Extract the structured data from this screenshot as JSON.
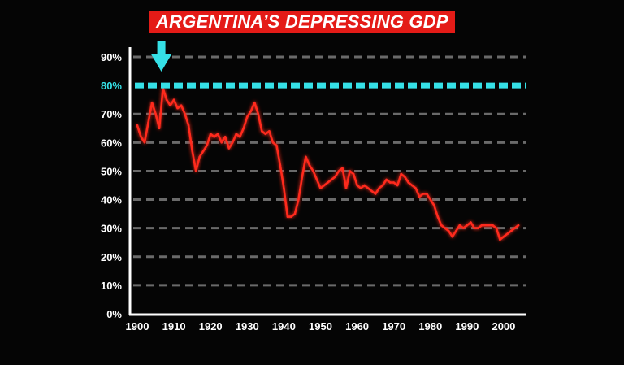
{
  "chart_data": {
    "type": "line",
    "title": "ARGENTINA’S DEPRESSING GDP",
    "xlabel": "",
    "ylabel": "",
    "xlim": [
      1898,
      2006
    ],
    "ylim": [
      0,
      90
    ],
    "x_ticks": [
      "1900",
      "1910",
      "1920",
      "1930",
      "1940",
      "1950",
      "1960",
      "1970",
      "1980",
      "1990",
      "2000"
    ],
    "y_ticks": [
      "0%",
      "10%",
      "20%",
      "30%",
      "40%",
      "50%",
      "60%",
      "70%",
      "80%",
      "90%"
    ],
    "highlight_value": 80,
    "highlight_label": "80%",
    "arrow_year": 1907,
    "grid": true,
    "legend": "none",
    "colors": {
      "line": "#ff2a1f",
      "highlight": "#35e0e6",
      "title_bg": "#e41b17",
      "axis": "#ffffff",
      "grid": "#6a6a6a"
    },
    "series": [
      {
        "x": [
          1900,
          1901,
          1902,
          1903,
          1904,
          1905,
          1906,
          1907,
          1908,
          1909,
          1910,
          1911,
          1912,
          1913,
          1914,
          1915,
          1916,
          1917,
          1918,
          1919,
          1920,
          1921,
          1922,
          1923,
          1924,
          1925,
          1926,
          1927,
          1928,
          1929,
          1930,
          1931,
          1932,
          1933,
          1934,
          1935,
          1936,
          1937,
          1938,
          1939,
          1940,
          1941,
          1942,
          1943,
          1944,
          1945,
          1946,
          1947,
          1948,
          1949,
          1950,
          1951,
          1952,
          1953,
          1954,
          1955,
          1956,
          1957,
          1958,
          1959,
          1960,
          1961,
          1962,
          1963,
          1964,
          1965,
          1966,
          1967,
          1968,
          1969,
          1970,
          1971,
          1972,
          1973,
          1974,
          1975,
          1976,
          1977,
          1978,
          1979,
          1980,
          1981,
          1982,
          1983,
          1984,
          1985,
          1986,
          1987,
          1988,
          1989,
          1990,
          1991,
          1992,
          1993,
          1994,
          1995,
          1996,
          1997,
          1998,
          1999,
          2000,
          2001,
          2002,
          2003,
          2004
        ],
        "y": [
          66,
          62,
          60,
          67,
          74,
          70,
          65,
          79,
          75,
          73,
          75,
          72,
          73,
          70,
          66,
          57,
          50,
          55,
          57,
          59,
          63,
          62,
          63,
          60,
          62,
          58,
          60,
          63,
          62,
          65,
          69,
          71,
          74,
          70,
          64,
          63,
          64,
          60,
          59,
          52,
          44,
          34,
          34,
          35,
          40,
          48,
          55,
          52,
          50,
          47,
          44,
          45,
          46,
          47,
          48,
          50,
          51,
          44,
          50,
          49,
          45,
          44,
          45,
          44,
          43,
          42,
          44,
          45,
          47,
          46,
          46,
          45,
          49,
          48,
          46,
          45,
          44,
          41,
          42,
          42,
          40,
          38,
          34,
          31,
          30,
          29,
          27,
          29,
          31,
          30,
          31,
          32,
          30,
          30,
          31,
          31,
          31,
          31,
          30,
          26,
          27,
          28,
          29,
          30,
          31
        ]
      }
    ]
  }
}
